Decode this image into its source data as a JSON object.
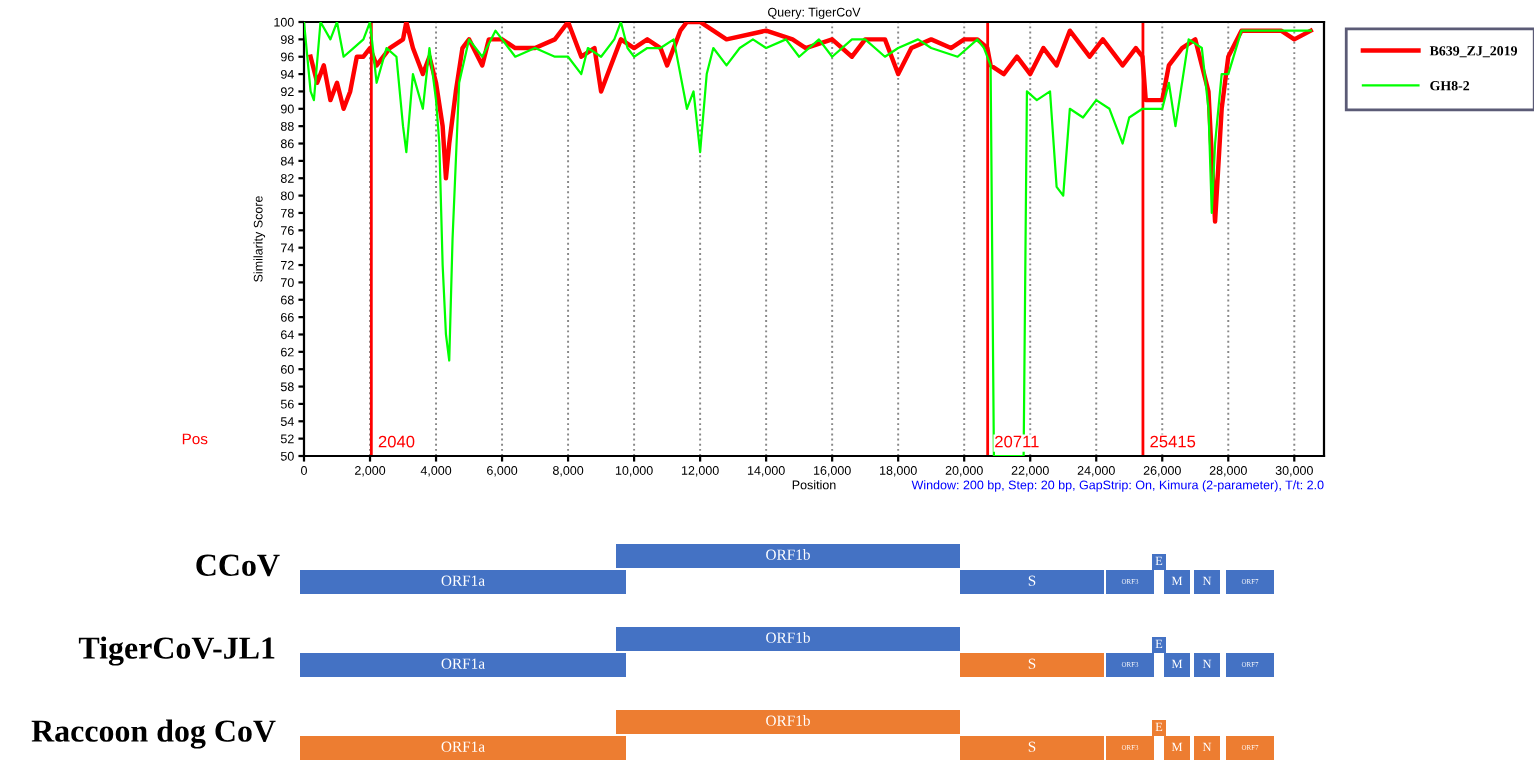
{
  "chart_data": [
    {
      "type": "line",
      "title": "Query: TigerCoV",
      "xlabel": "Position",
      "ylabel": "Similarity Score",
      "xlim": [
        0,
        30900
      ],
      "xticks": [
        {
          "value": 0,
          "label": "0"
        },
        {
          "value": 2000,
          "label": "2,000"
        },
        {
          "value": 4000,
          "label": "4,000"
        },
        {
          "value": 6000,
          "label": "6,000"
        },
        {
          "value": 8000,
          "label": "8,000"
        },
        {
          "value": 10000,
          "label": "10,000"
        },
        {
          "value": 12000,
          "label": "12,000"
        },
        {
          "value": 14000,
          "label": "14,000"
        },
        {
          "value": 16000,
          "label": "16,000"
        },
        {
          "value": 18000,
          "label": "18,000"
        },
        {
          "value": 20000,
          "label": "20,000"
        },
        {
          "value": 22000,
          "label": "22,000"
        },
        {
          "value": 24000,
          "label": "24,000"
        },
        {
          "value": 26000,
          "label": "26,000"
        },
        {
          "value": 28000,
          "label": "28,000"
        },
        {
          "value": 30000,
          "label": "30,000"
        }
      ],
      "ylim": [
        50,
        100
      ],
      "yticks": [
        50,
        52,
        54,
        56,
        58,
        60,
        62,
        64,
        66,
        68,
        70,
        72,
        74,
        76,
        78,
        80,
        82,
        84,
        86,
        88,
        90,
        92,
        94,
        96,
        98,
        100
      ],
      "grid": "x",
      "legend": "top right",
      "marker": "none",
      "line_style": "solid",
      "series": [
        {
          "name": "B639_ZJ_2019",
          "color": "#ff0000",
          "x": [
            200,
            400,
            600,
            800,
            1000,
            1200,
            1400,
            1600,
            1800,
            2000,
            2200,
            2600,
            3000,
            3100,
            3300,
            3600,
            3800,
            4000,
            4200,
            4300,
            4400,
            4600,
            4800,
            5000,
            5400,
            5600,
            6000,
            6400,
            7000,
            7600,
            8000,
            8400,
            8800,
            9000,
            9200,
            9600,
            10000,
            10400,
            10800,
            11000,
            11400,
            11600,
            12000,
            12400,
            12800,
            14000,
            14800,
            15200,
            16000,
            16600,
            17000,
            17600,
            18000,
            18400,
            19000,
            19600,
            20000,
            20400,
            20700,
            20800,
            21200,
            21600,
            22000,
            22400,
            22800,
            23200,
            23800,
            24200,
            24800,
            25200,
            25400,
            25500,
            26000,
            26200,
            26600,
            27000,
            27400,
            27600,
            27800,
            28000,
            28400,
            29000,
            29600,
            30000,
            30500
          ],
          "values": [
            96,
            93,
            95,
            91,
            93,
            90,
            92,
            96,
            96,
            97,
            95,
            97,
            98,
            100,
            97,
            94,
            96,
            93,
            88,
            82,
            86,
            92,
            97,
            98,
            95,
            98,
            98,
            97,
            97,
            98,
            100,
            96,
            97,
            92,
            94,
            98,
            97,
            98,
            97,
            95,
            99,
            100,
            100,
            99,
            98,
            99,
            98,
            97,
            98,
            96,
            98,
            98,
            94,
            97,
            98,
            97,
            98,
            98,
            97,
            95,
            94,
            96,
            94,
            97,
            95,
            99,
            96,
            98,
            95,
            97,
            96,
            91,
            91,
            95,
            97,
            98,
            92,
            77,
            90,
            96,
            99,
            99,
            99,
            98,
            99
          ]
        },
        {
          "name": "GH8-2",
          "color": "#00ff00",
          "x": [
            0,
            200,
            300,
            500,
            800,
            1000,
            1200,
            1500,
            1800,
            2000,
            2200,
            2500,
            2800,
            3000,
            3100,
            3300,
            3600,
            3800,
            4000,
            4100,
            4200,
            4300,
            4400,
            4500,
            4700,
            5000,
            5400,
            5800,
            6400,
            7000,
            7600,
            8000,
            8400,
            8600,
            9000,
            9400,
            9600,
            9800,
            10000,
            10400,
            10800,
            11200,
            11600,
            11800,
            12000,
            12200,
            12400,
            12800,
            13200,
            13600,
            14000,
            14600,
            15000,
            15600,
            16000,
            16600,
            17000,
            17600,
            18000,
            18600,
            19000,
            19800,
            20400,
            20600,
            20800,
            20900,
            21800,
            21900,
            22200,
            22600,
            22800,
            23000,
            23200,
            23600,
            24000,
            24400,
            24800,
            25000,
            25400,
            25600,
            26000,
            26200,
            26400,
            26800,
            27200,
            27400,
            27500,
            27600,
            27800,
            28000,
            28400,
            29000,
            29600,
            30000,
            30500
          ],
          "values": [
            100,
            92,
            91,
            100,
            98,
            100,
            96,
            97,
            98,
            100,
            93,
            97,
            96,
            88,
            85,
            94,
            90,
            97,
            91,
            86,
            72,
            64,
            61,
            75,
            93,
            98,
            96,
            99,
            96,
            97,
            96,
            96,
            94,
            97,
            96,
            98,
            100,
            97,
            96,
            97,
            97,
            98,
            90,
            92,
            85,
            94,
            97,
            95,
            97,
            98,
            97,
            98,
            96,
            98,
            96,
            98,
            98,
            96,
            97,
            98,
            97,
            96,
            98,
            97,
            95,
            50,
            50,
            92,
            91,
            92,
            81,
            80,
            90,
            89,
            91,
            90,
            86,
            89,
            90,
            90,
            90,
            93,
            88,
            98,
            97,
            90,
            78,
            86,
            94,
            94,
            99,
            99,
            99,
            99,
            99
          ]
        }
      ],
      "ref_lines": [
        {
          "axis": "x",
          "value": 2040,
          "label": "2040",
          "color": "#ff0000"
        },
        {
          "axis": "x",
          "value": 20711,
          "label": "20711",
          "color": "#ff0000"
        },
        {
          "axis": "x",
          "value": 25415,
          "label": "25415",
          "color": "#ff0000"
        }
      ],
      "annotations": [
        "Pos",
        "Window: 200 bp, Step: 20 bp, GapStrip: On, Kimura (2-parameter), T/t: 2.0"
      ]
    },
    {
      "type": "other",
      "annotations": [
        "CCoV",
        "TigerCoV-JL1",
        "Raccoon dog CoV",
        "ORF1a",
        "ORF1b",
        "S",
        "ORF3",
        "E",
        "M",
        "N",
        "ORF7",
        "ORF1a",
        "ORF1b",
        "S",
        "ORF3",
        "E",
        "M",
        "N",
        "ORF7",
        "ORF1a",
        "ORF1b",
        "S",
        "ORF3",
        "E",
        "M",
        "N",
        "ORF7"
      ]
    }
  ]
}
